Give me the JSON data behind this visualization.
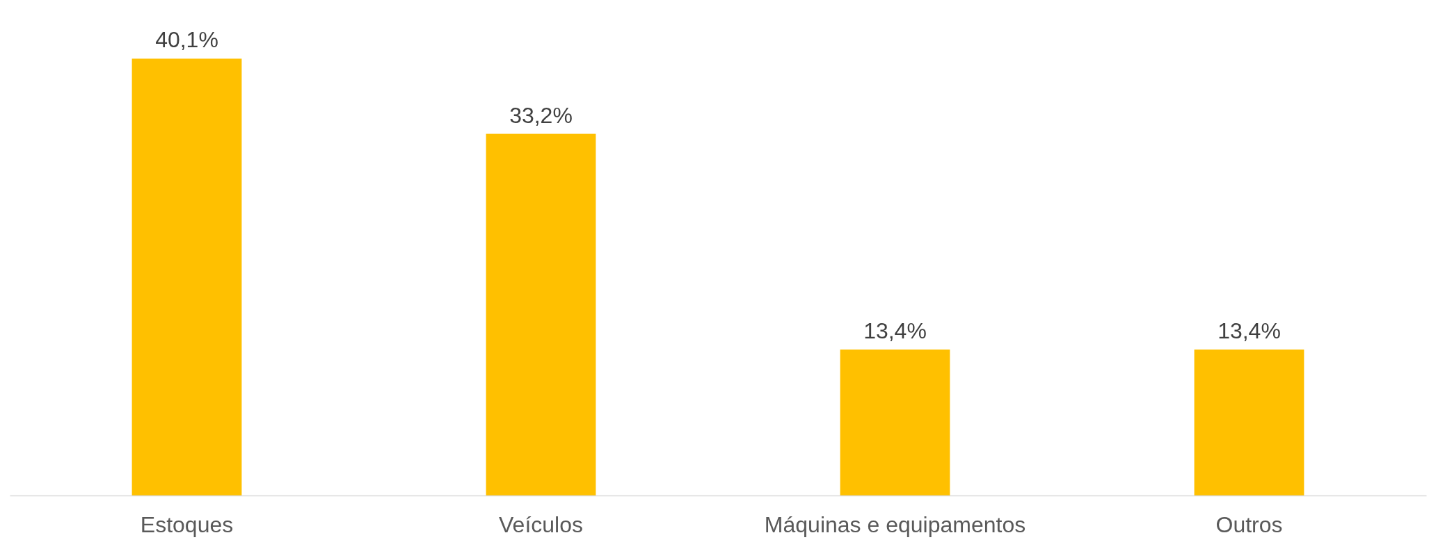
{
  "chart_data": {
    "type": "bar",
    "categories": [
      "Estoques",
      "Veículos",
      "Máquinas e equipamentos",
      "Outros"
    ],
    "series": [
      {
        "color": "#ffc000",
        "values": [
          40.1,
          33.2,
          13.4,
          13.4
        ],
        "value_labels": [
          "40,1%",
          "33,2%",
          "13,4%",
          "13,4%"
        ]
      }
    ],
    "tick_labels": "x"
  }
}
